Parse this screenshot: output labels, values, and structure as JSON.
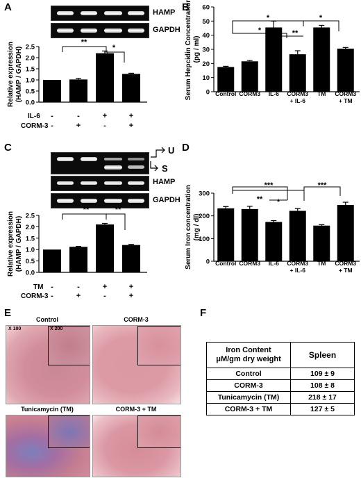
{
  "panels": {
    "A": {
      "label": "A",
      "bands": [
        "HAMP",
        "GAPDH"
      ],
      "treatments": [
        {
          "name": "IL-6",
          "signs": [
            "-",
            "-",
            "+",
            "+"
          ]
        },
        {
          "name": "CORM-3",
          "signs": [
            "-",
            "+",
            "-",
            "+"
          ]
        }
      ],
      "sig": [
        "**",
        "*"
      ]
    },
    "B": {
      "label": "B",
      "sig": [
        "*",
        "*",
        "**",
        "*"
      ]
    },
    "C": {
      "label": "C",
      "splice": [
        "U",
        "S"
      ],
      "bands": [
        "HAMP",
        "GAPDH"
      ],
      "treatments": [
        {
          "name": "TM",
          "signs": [
            "-",
            "-",
            "+",
            "+"
          ]
        },
        {
          "name": "CORM-3",
          "signs": [
            "-",
            "+",
            "-",
            "+"
          ]
        }
      ],
      "sig": [
        "**",
        "**"
      ]
    },
    "D": {
      "label": "D",
      "sig": [
        "**",
        "***",
        "*",
        "***"
      ]
    },
    "E": {
      "label": "E",
      "images": [
        "Control",
        "CORM-3",
        "Tunicamycin (TM)",
        "CORM-3 + TM"
      ],
      "mag_low": "X 100",
      "mag_high": "X 200"
    },
    "F": {
      "label": "F",
      "header_left": [
        "Iron Content",
        "μM/gm dry weight"
      ],
      "header_right": "Spleen",
      "rows": [
        {
          "group": "Control",
          "value": "109 ± 9"
        },
        {
          "group": "CORM-3",
          "value": "108 ± 8"
        },
        {
          "group": "Tunicamycin (TM)",
          "value": "218 ± 17"
        },
        {
          "group": "CORM-3 + TM",
          "value": "127 ± 5"
        }
      ]
    }
  },
  "chart_data": [
    {
      "panel": "A",
      "type": "bar",
      "ylabel": "Relative expression (HAMP / GAPDH)",
      "ylim": [
        0,
        2.5
      ],
      "yticks": [
        0.0,
        0.5,
        1.0,
        1.5,
        2.0,
        2.5
      ],
      "categories": [
        "",
        "",
        "",
        ""
      ],
      "values": [
        1.0,
        1.02,
        2.2,
        1.27
      ],
      "errors": [
        0.0,
        0.05,
        0.1,
        0.03
      ]
    },
    {
      "panel": "B",
      "type": "bar",
      "ylabel": "Serum Hepcidin Concentration (pg / ml)",
      "ylim": [
        0,
        60
      ],
      "yticks": [
        0,
        10,
        20,
        30,
        40,
        50,
        60
      ],
      "categories": [
        "Control",
        "CORM3",
        "IL-6",
        "CORM3 + IL-6",
        "TM",
        "CORM3 + TM"
      ],
      "values": [
        17.5,
        21.5,
        45.5,
        26.5,
        45.5,
        30.5
      ],
      "errors": [
        0.5,
        0.6,
        4.5,
        2.5,
        1.5,
        0.8
      ]
    },
    {
      "panel": "C",
      "type": "bar",
      "ylabel": "Relative expression (HAMP / GAPDH)",
      "ylim": [
        0,
        2.5
      ],
      "yticks": [
        0.0,
        0.5,
        1.0,
        1.5,
        2.0,
        2.5
      ],
      "categories": [
        "",
        "",
        "",
        ""
      ],
      "values": [
        1.0,
        1.12,
        2.1,
        1.2
      ],
      "errors": [
        0.0,
        0.02,
        0.05,
        0.03
      ]
    },
    {
      "panel": "D",
      "type": "bar",
      "ylabel": "Serum Iron concentration (mg / dl)",
      "ylim": [
        0,
        300
      ],
      "yticks": [
        0,
        100,
        200,
        300
      ],
      "categories": [
        "Control",
        "CORM3",
        "IL-6",
        "CORM3 + IL-6",
        "TM",
        "CORM3 + TM"
      ],
      "values": [
        233,
        230,
        173,
        222,
        157,
        248
      ],
      "errors": [
        8,
        12,
        6,
        10,
        4,
        12
      ]
    }
  ],
  "colors": {
    "bar": "#000000",
    "gel": "#0b0b0b",
    "stain_pink": "#d98c95",
    "stain_blue": "#6a74b8"
  }
}
